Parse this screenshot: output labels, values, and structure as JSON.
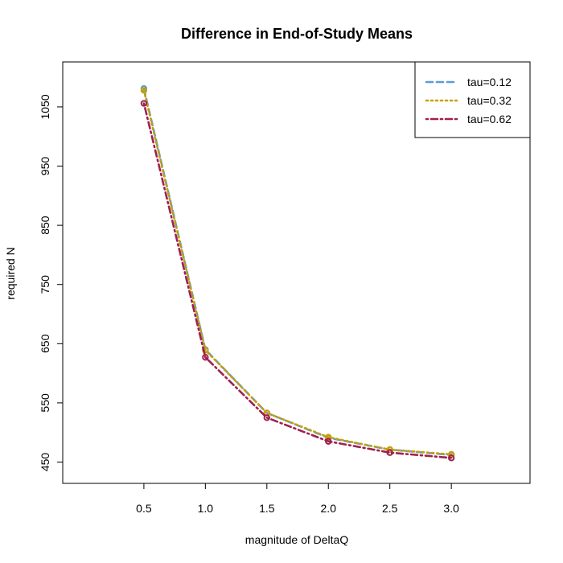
{
  "chart_data": {
    "type": "line",
    "title": "Difference in End-of-Study Means",
    "xlabel": "magnitude of DeltaQ",
    "ylabel": "required N",
    "x": [
      0.5,
      1.0,
      1.5,
      2.0,
      2.5,
      3.0
    ],
    "x_tick_labels": [
      "0.5",
      "1.0",
      "1.5",
      "2.0",
      "2.5",
      "3.0"
    ],
    "y_ticks": [
      450,
      550,
      650,
      750,
      850,
      950,
      1050
    ],
    "y_tick_labels": [
      "450",
      "550",
      "650",
      "750",
      "850",
      "950",
      "1050"
    ],
    "xlim": [
      -0.16,
      3.64
    ],
    "ylim": [
      414,
      1126
    ],
    "grid": false,
    "legend_position": "top-right",
    "series": [
      {
        "name": "tau=0.12",
        "values": [
          1081,
          640,
          533,
          491,
          471,
          462
        ],
        "color": "#5b9bd5",
        "line_style": "dashed"
      },
      {
        "name": "tau=0.32",
        "values": [
          1078,
          639,
          533,
          492,
          471,
          463
        ],
        "color": "#c8a000",
        "line_style": "dotted"
      },
      {
        "name": "tau=0.62",
        "values": [
          1056,
          627,
          525,
          485,
          466,
          457
        ],
        "color": "#a0204f",
        "line_style": "dotdash"
      }
    ]
  }
}
